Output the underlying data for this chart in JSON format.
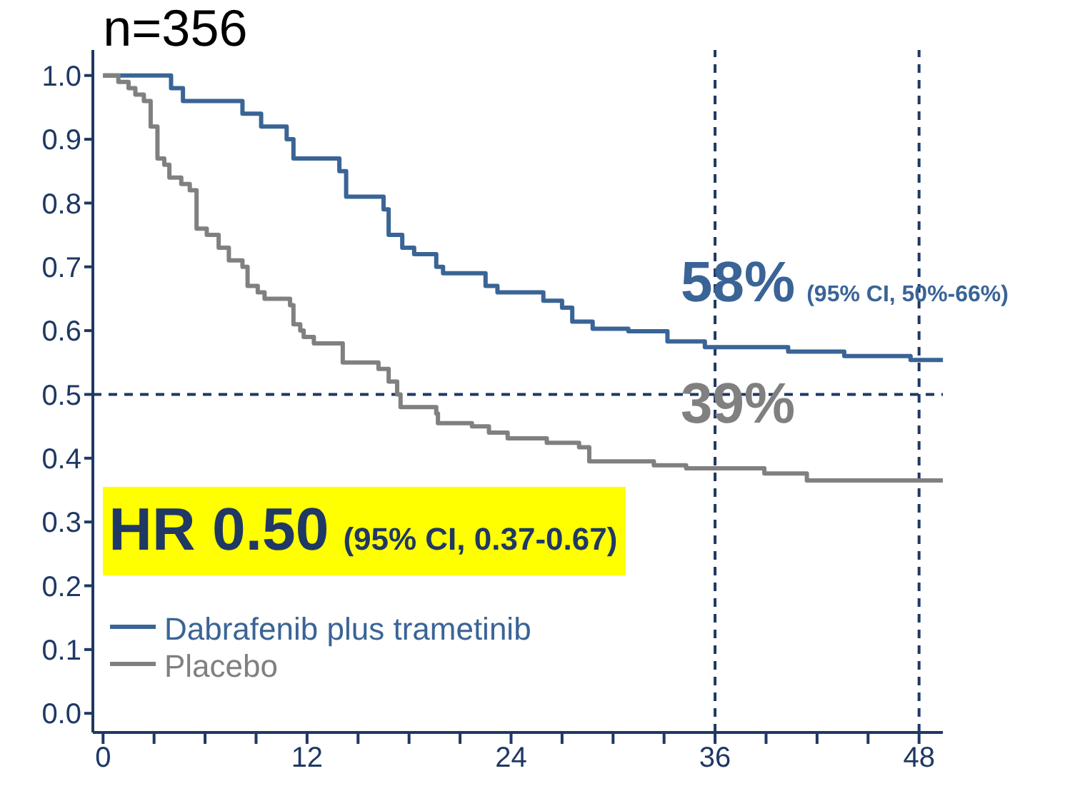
{
  "chart_data": {
    "type": "step",
    "title": "n=356",
    "xlim": [
      -0.6,
      49.4
    ],
    "xticks": [
      0,
      {
        "value": 3,
        "label": null
      },
      {
        "value": 6,
        "label": null
      },
      {
        "value": 9,
        "label": null
      },
      12,
      {
        "value": 15,
        "label": null
      },
      {
        "value": 18,
        "label": null
      },
      {
        "value": 21,
        "label": null
      },
      24,
      {
        "value": 27,
        "label": null
      },
      {
        "value": 30,
        "label": null
      },
      {
        "value": 33,
        "label": null
      },
      36,
      {
        "value": 39,
        "label": null
      },
      {
        "value": 42,
        "label": null
      },
      {
        "value": 45,
        "label": null
      },
      48
    ],
    "ylim": [
      -0.03,
      1.04
    ],
    "yticks": [
      {
        "value": 0,
        "label": "0.0"
      },
      0.1,
      0.2,
      0.3,
      0.4,
      0.5,
      0.6,
      0.7,
      0.8,
      0.9,
      {
        "value": 1,
        "label": "1.0"
      }
    ],
    "legend": "bottom left",
    "line_style": "solid",
    "grid": false,
    "series": [
      {
        "name": "Dabrafenib plus trametinib",
        "color": "#3a6496",
        "x": [
          0,
          4.0,
          4.7,
          5.7,
          8.2,
          9.3,
          10.8,
          11.2,
          13.9,
          14.3,
          16.5,
          16.8,
          17.6,
          18.3,
          19.6,
          20,
          22.5,
          23.2,
          25.9,
          27.0,
          27.6,
          28.8,
          30.9,
          33.2,
          35.4,
          40.3,
          43.6,
          47.5,
          49.4
        ],
        "values": [
          1.0,
          0.98,
          0.96,
          0.96,
          0.94,
          0.92,
          0.9,
          0.87,
          0.85,
          0.81,
          0.79,
          0.75,
          0.73,
          0.72,
          0.7,
          0.69,
          0.67,
          0.66,
          0.647,
          0.636,
          0.614,
          0.603,
          0.599,
          0.583,
          0.574,
          0.567,
          0.56,
          0.554,
          0.554
        ]
      },
      {
        "name": "Placebo",
        "color": "#808080",
        "x": [
          0,
          0.9,
          1.5,
          1.9,
          2.4,
          2.8,
          3.2,
          3.6,
          3.9,
          4.6,
          5.1,
          5.5,
          6.1,
          6.8,
          7.4,
          8.2,
          8.5,
          9.1,
          9.5,
          11.0,
          11.2,
          11.6,
          11.8,
          12.4,
          14.1,
          16.2,
          16.8,
          17.3,
          17.5,
          19.6,
          19.7,
          21.7,
          22.7,
          23.8,
          26.1,
          28.0,
          28.6,
          32.4,
          34.3,
          38.9,
          41.4,
          49.4
        ],
        "values": [
          1.0,
          0.99,
          0.98,
          0.97,
          0.96,
          0.92,
          0.87,
          0.86,
          0.84,
          0.83,
          0.82,
          0.76,
          0.75,
          0.73,
          0.71,
          0.7,
          0.67,
          0.66,
          0.65,
          0.64,
          0.61,
          0.6,
          0.59,
          0.58,
          0.55,
          0.54,
          0.52,
          0.5,
          0.48,
          0.47,
          0.455,
          0.45,
          0.44,
          0.431,
          0.424,
          0.417,
          0.395,
          0.389,
          0.384,
          0.376,
          0.365,
          0.365
        ]
      }
    ],
    "ref_lines": [
      {
        "axis": "y",
        "value": 0.5,
        "color": "#1f3864",
        "line_style": "dashed"
      },
      {
        "axis": "x",
        "value": 36,
        "color": "#1f3864",
        "line_style": "dashed"
      },
      {
        "axis": "x",
        "value": 48,
        "color": "#1f3864",
        "line_style": "dashed"
      }
    ],
    "annotations": [
      "HR 0.50",
      "(95% CI, 0.37-0.67)",
      {
        "text": "58%",
        "x": 36,
        "y": 0.58
      },
      "(95% CI, 50%-66%)",
      {
        "text": "39%",
        "x": 36,
        "y": 0.39
      }
    ]
  }
}
